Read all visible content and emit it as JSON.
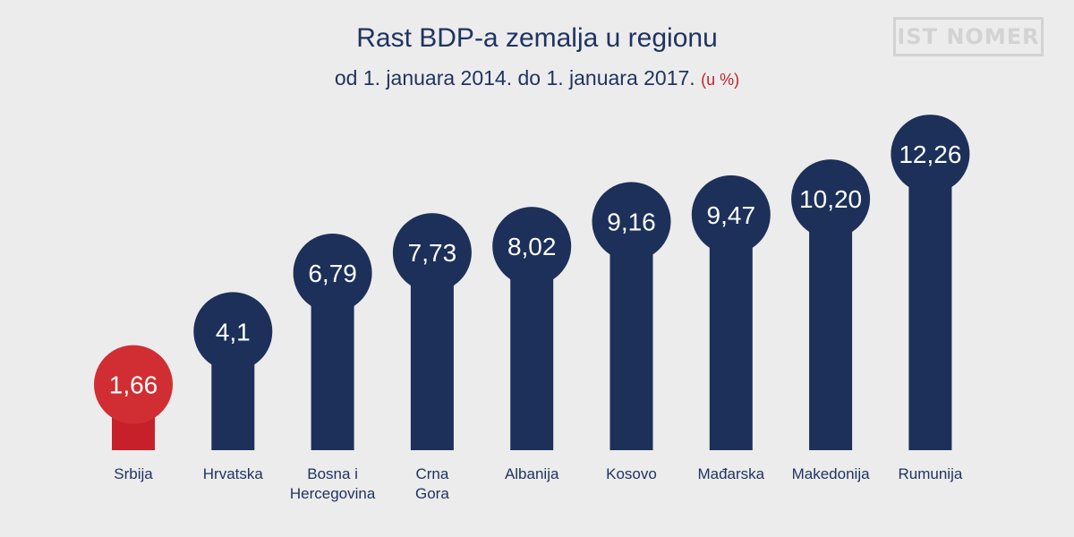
{
  "chart_data": {
    "type": "bar",
    "title": "Rast BDP-a zemalja u regionu",
    "subtitle": "od 1. januara 2014. do 1. januara 2017.",
    "unit": "(u %)",
    "categories": [
      [
        "Srbija"
      ],
      [
        "Hrvatska"
      ],
      [
        "Bosna i",
        "Hercegovina"
      ],
      [
        "Crna",
        "Gora"
      ],
      [
        "Albanija"
      ],
      [
        "Kosovo"
      ],
      [
        "Mađarska"
      ],
      [
        "Makedonija"
      ],
      [
        "Rumunija"
      ]
    ],
    "values": [
      1.66,
      4.1,
      6.79,
      7.73,
      8.02,
      9.16,
      9.47,
      10.2,
      12.26
    ],
    "value_labels": [
      "1,66",
      "4,1",
      "6,79",
      "7,73",
      "8,02",
      "9,16",
      "9,47",
      "10,20",
      "12,26"
    ],
    "highlight_index": 0,
    "ylim": [
      0,
      12.26
    ]
  },
  "logo_text": "IST NOMER",
  "colors": {
    "bar": "#1c305a",
    "highlight": "#c8202a",
    "highlight_circle": "#d12e33",
    "text": "#1f3461",
    "background": "#ececec"
  }
}
